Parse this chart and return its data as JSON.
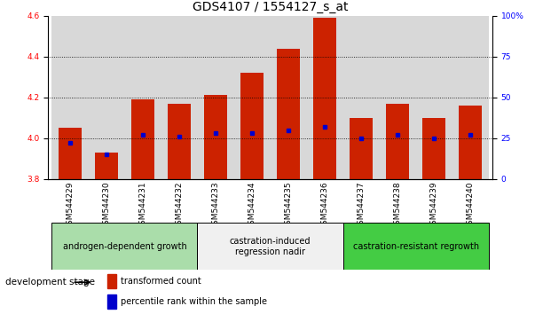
{
  "title": "GDS4107 / 1554127_s_at",
  "samples": [
    "GSM544229",
    "GSM544230",
    "GSM544231",
    "GSM544232",
    "GSM544233",
    "GSM544234",
    "GSM544235",
    "GSM544236",
    "GSM544237",
    "GSM544238",
    "GSM544239",
    "GSM544240"
  ],
  "transformed_count": [
    4.05,
    3.93,
    4.19,
    4.17,
    4.21,
    4.32,
    4.44,
    4.59,
    4.1,
    4.17,
    4.1,
    4.16
  ],
  "percentile_rank": [
    22,
    15,
    27,
    26,
    28,
    28,
    30,
    32,
    25,
    27,
    25,
    27
  ],
  "ymin": 3.8,
  "ymax": 4.6,
  "y2min": 0,
  "y2max": 100,
  "y_ticks": [
    3.8,
    4.0,
    4.2,
    4.4,
    4.6
  ],
  "y2_ticks": [
    0,
    25,
    50,
    75,
    100
  ],
  "bar_color": "#cc2200",
  "dot_color": "#0000cc",
  "col_bg_color": "#c8c8c8",
  "groups": [
    {
      "label": "androgen-dependent growth",
      "start": 0,
      "end": 3,
      "color": "#aaddaa"
    },
    {
      "label": "castration-induced\nregression nadir",
      "start": 4,
      "end": 7,
      "color": "#f0f0f0"
    },
    {
      "label": "castration-resistant regrowth",
      "start": 8,
      "end": 11,
      "color": "#44cc44"
    }
  ],
  "legend_items": [
    {
      "label": "transformed count",
      "color": "#cc2200"
    },
    {
      "label": "percentile rank within the sample",
      "color": "#0000cc"
    }
  ],
  "stage_label": "development stage",
  "title_fontsize": 10,
  "tick_fontsize": 6.5,
  "group_fontsize": 7,
  "legend_fontsize": 7
}
